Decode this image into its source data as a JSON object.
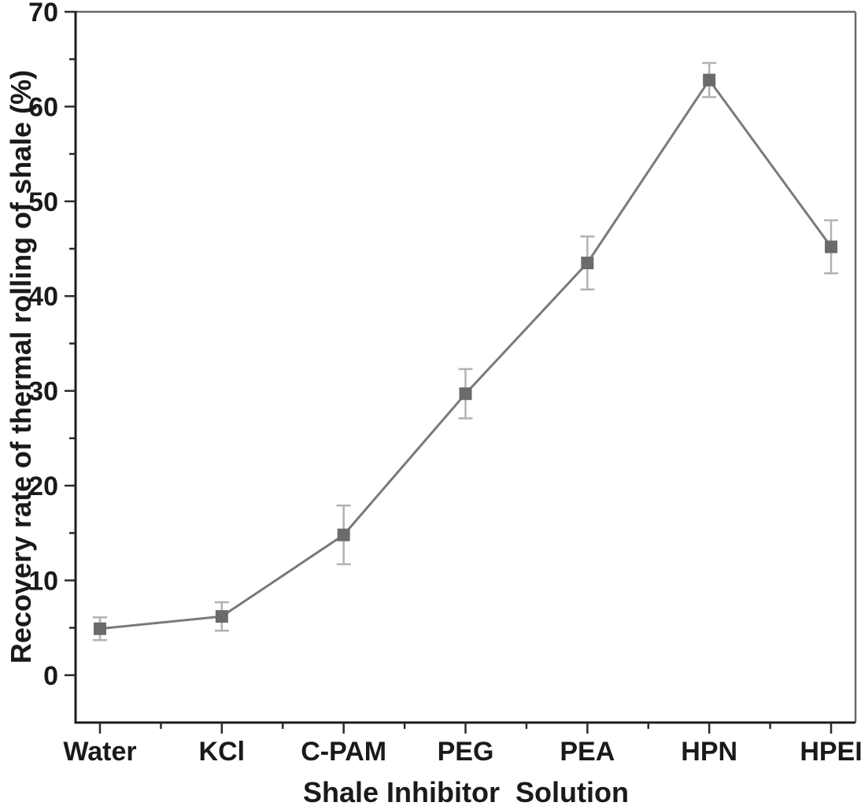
{
  "chart_data": {
    "type": "line",
    "title": "",
    "xlabel": "Shale Inhibitor  Solution",
    "ylabel": "Recovery rate of thermal rolling of shale (%)",
    "categories": [
      "Water",
      "KCl",
      "C-PAM",
      "PEG",
      "PEA",
      "HPN",
      "HPEI"
    ],
    "series": [
      {
        "name": "Recovery rate of thermal rolling of shale",
        "values": [
          4.9,
          6.2,
          14.8,
          29.7,
          43.5,
          62.8,
          45.2
        ],
        "errors": [
          1.2,
          1.5,
          3.1,
          2.6,
          2.8,
          1.8,
          2.8
        ]
      }
    ],
    "ylim": [
      -5,
      70
    ],
    "y_major_ticks": [
      0,
      10,
      20,
      30,
      40,
      50,
      60,
      70
    ],
    "y_minor_ticks": [
      5,
      15,
      25,
      35,
      45,
      55,
      65
    ],
    "x_minor_ticks_between_categories": true,
    "grid": false,
    "legend_position": "none",
    "marker": "square",
    "error_bars": "vertical-with-caps",
    "colors": {
      "marker": "#6b6b6b",
      "line": "#7a7a7a",
      "error_bar": "#b2b2b2",
      "axis_left_bottom": "#1c1c1c",
      "axis_top_right": "#6a6a6a",
      "tick": "#2b2b2b",
      "text": "#1a1a1a",
      "background": "#ffffff"
    }
  }
}
